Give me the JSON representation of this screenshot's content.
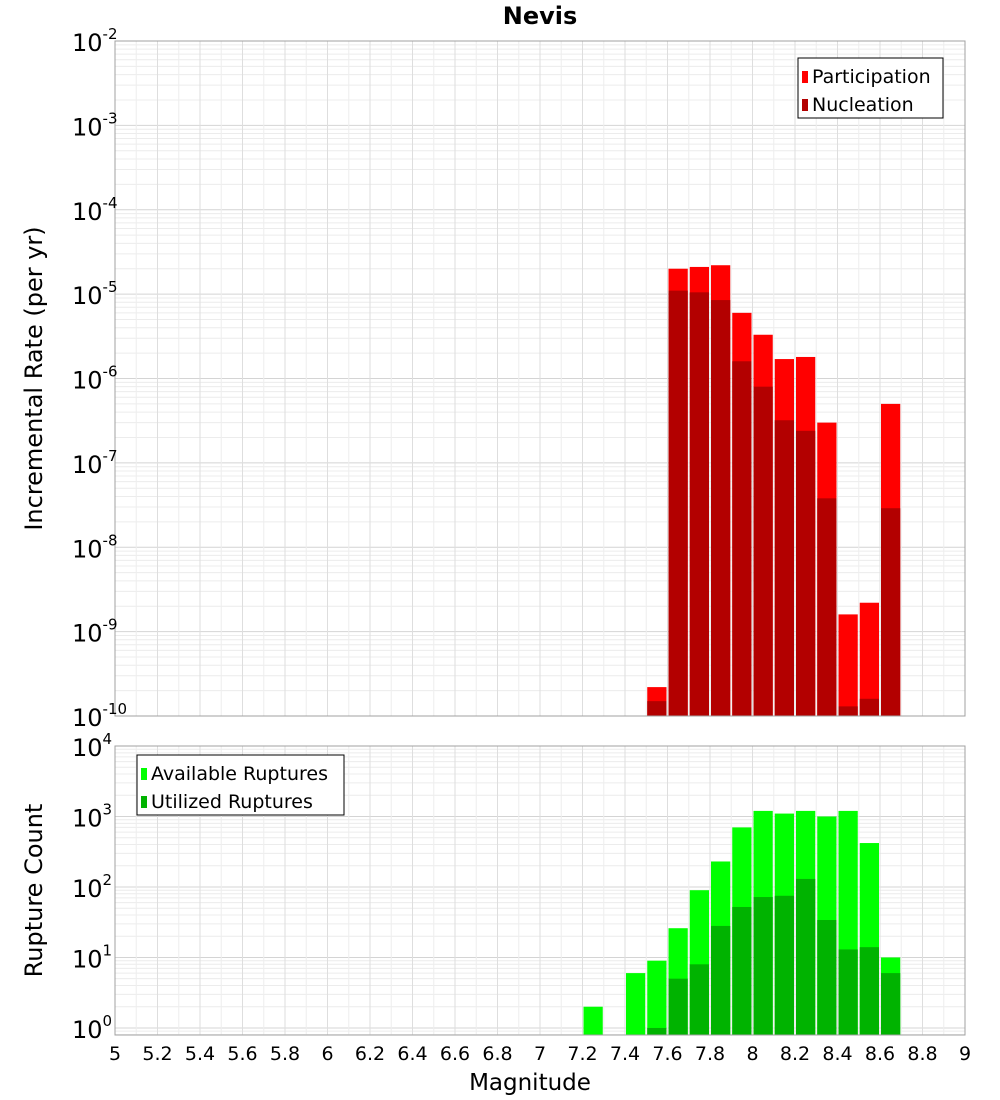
{
  "chart_data": [
    {
      "type": "bar",
      "title": "Nevis",
      "xlabel": "Magnitude",
      "ylabel": "Incremental Rate (per yr)",
      "yscale": "log",
      "ylim_exp": [
        -10,
        -2
      ],
      "xlim": [
        5,
        9
      ],
      "bin_width": 0.1,
      "legend": {
        "placement": "top-right",
        "entries": [
          {
            "label": "Participation",
            "color": "#ff0000"
          },
          {
            "label": "Nucleation",
            "color": "#b30000"
          }
        ]
      },
      "x": [
        7.5,
        7.6,
        7.7,
        7.8,
        7.9,
        8.0,
        8.1,
        8.2,
        8.3,
        8.4,
        8.5,
        8.6
      ],
      "series": [
        {
          "name": "Participation",
          "color": "#ff0000",
          "values": [
            2.2e-10,
            2e-05,
            2.1e-05,
            2.2e-05,
            6e-06,
            3.3e-06,
            1.7e-06,
            1.8e-06,
            3e-07,
            1.6e-09,
            2.2e-09,
            5e-07
          ]
        },
        {
          "name": "Nucleation",
          "color": "#b30000",
          "values": [
            1.5e-10,
            1.1e-05,
            1.05e-05,
            8.5e-06,
            1.6e-06,
            8e-07,
            3.2e-07,
            2.4e-07,
            3.8e-08,
            1.3e-10,
            1.6e-10,
            2.9e-08
          ]
        }
      ]
    },
    {
      "type": "bar",
      "title": "",
      "xlabel": "Magnitude",
      "ylabel": "Rupture Count",
      "yscale": "log",
      "ylim_exp": [
        -0.1,
        4
      ],
      "xlim": [
        5,
        9
      ],
      "bin_width": 0.1,
      "xticks": [
        "5",
        "5.2",
        "5.4",
        "5.6",
        "5.8",
        "6",
        "6.2",
        "6.4",
        "6.6",
        "6.8",
        "7",
        "7.2",
        "7.4",
        "7.6",
        "7.8",
        "8",
        "8.2",
        "8.4",
        "8.6",
        "8.8",
        "9"
      ],
      "legend": {
        "placement": "top-left",
        "entries": [
          {
            "label": "Available Ruptures",
            "color": "#00ff00"
          },
          {
            "label": "Utilized Ruptures",
            "color": "#00b300"
          }
        ]
      },
      "x": [
        7.2,
        7.4,
        7.5,
        7.6,
        7.7,
        7.8,
        7.9,
        8.0,
        8.1,
        8.2,
        8.3,
        8.4,
        8.5,
        8.6
      ],
      "series": [
        {
          "name": "Available Ruptures",
          "color": "#00ff00",
          "values": [
            2,
            6,
            9,
            26,
            90,
            230,
            700,
            1200,
            1100,
            1200,
            1000,
            1200,
            420,
            10
          ]
        },
        {
          "name": "Utilized Ruptures",
          "color": "#00b300",
          "values": [
            null,
            null,
            1,
            5,
            8,
            28,
            52,
            72,
            75,
            130,
            34,
            13,
            14,
            6
          ]
        }
      ]
    }
  ]
}
